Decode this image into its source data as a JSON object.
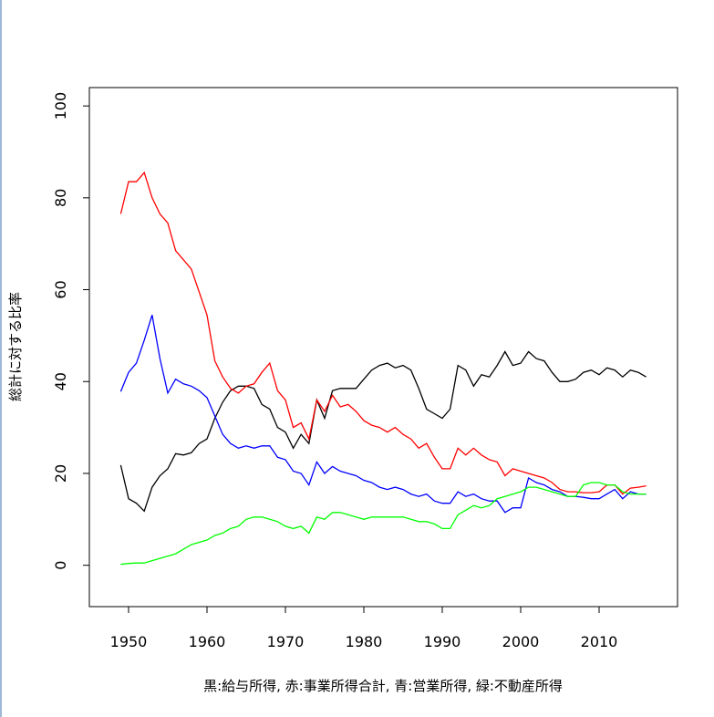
{
  "chart_data": {
    "type": "line",
    "title": "",
    "xlabel": "黒:給与所得, 赤:事業所得合計, 青:営業所得, 緑:不動産所得",
    "ylabel": "総計に対する比率",
    "xlim": [
      1945,
      2020
    ],
    "ylim": [
      -9,
      104
    ],
    "x_ticks": [
      1950,
      1960,
      1970,
      1980,
      1990,
      2000,
      2010
    ],
    "y_ticks": [
      0,
      20,
      40,
      60,
      80,
      100
    ],
    "grid": false,
    "legend": "none",
    "x": [
      1949,
      1950,
      1951,
      1952,
      1953,
      1954,
      1955,
      1956,
      1957,
      1958,
      1959,
      1960,
      1961,
      1962,
      1963,
      1964,
      1965,
      1966,
      1967,
      1968,
      1969,
      1970,
      1971,
      1972,
      1973,
      1974,
      1975,
      1976,
      1977,
      1978,
      1979,
      1980,
      1981,
      1982,
      1983,
      1984,
      1985,
      1986,
      1987,
      1988,
      1989,
      1990,
      1991,
      1992,
      1993,
      1994,
      1995,
      1996,
      1997,
      1998,
      1999,
      2000,
      2001,
      2002,
      2003,
      2004,
      2005,
      2006,
      2007,
      2008,
      2009,
      2010,
      2011,
      2012,
      2013,
      2014,
      2015,
      2016
    ],
    "series": [
      {
        "color": "#000000",
        "values": [
          21.8,
          14.5,
          13.5,
          11.8,
          17.0,
          19.5,
          21.0,
          24.3,
          24.0,
          24.5,
          26.5,
          27.5,
          32.0,
          35.5,
          38.0,
          39.0,
          39.0,
          38.5,
          35.0,
          34.0,
          30.0,
          29.0,
          25.5,
          28.5,
          26.5,
          36.0,
          32.0,
          38.0,
          38.5,
          38.5,
          38.5,
          40.5,
          42.5,
          43.5,
          44.0,
          43.0,
          43.5,
          42.5,
          38.5,
          34.0,
          33.0,
          32.0,
          34.0,
          43.5,
          42.5,
          39.0,
          41.5,
          41.0,
          43.5,
          46.5,
          43.5,
          44.0,
          46.5,
          45.0,
          44.5,
          42.0,
          40.0,
          40.0,
          40.5,
          42.0,
          42.5,
          41.5,
          43.0,
          42.5,
          41.0,
          42.5,
          42.0,
          41.0
        ]
      },
      {
        "color": "#ff0000",
        "values": [
          76.5,
          83.5,
          83.5,
          85.5,
          80.0,
          76.5,
          74.5,
          68.5,
          66.5,
          64.5,
          59.5,
          54.5,
          44.5,
          41.0,
          38.5,
          37.5,
          39.0,
          39.5,
          42.0,
          44.0,
          38.0,
          36.0,
          30.0,
          31.0,
          27.5,
          36.0,
          33.5,
          37.0,
          34.5,
          35.0,
          33.5,
          31.5,
          30.5,
          30.0,
          29.0,
          30.0,
          28.5,
          27.5,
          25.5,
          26.5,
          23.5,
          21.0,
          21.0,
          25.5,
          24.0,
          25.5,
          24.0,
          23.0,
          22.5,
          19.5,
          21.0,
          20.5,
          20.0,
          19.5,
          19.0,
          18.0,
          16.5,
          16.0,
          16.0,
          15.8,
          15.8,
          16.0,
          17.5,
          17.5,
          15.5,
          16.8,
          17.0,
          17.3
        ]
      },
      {
        "color": "#0000ff",
        "values": [
          37.8,
          42.0,
          44.0,
          49.0,
          54.5,
          45.0,
          37.5,
          40.5,
          39.5,
          39.0,
          38.0,
          36.5,
          32.5,
          28.5,
          26.5,
          25.5,
          26.0,
          25.5,
          26.0,
          26.0,
          23.5,
          23.0,
          20.5,
          20.0,
          17.5,
          22.5,
          20.0,
          21.5,
          20.5,
          20.0,
          19.5,
          18.5,
          18.0,
          17.0,
          16.5,
          17.0,
          16.5,
          15.5,
          15.0,
          15.5,
          14.0,
          13.5,
          13.5,
          16.0,
          15.0,
          15.5,
          14.5,
          14.0,
          14.0,
          11.5,
          12.5,
          12.5,
          19.0,
          18.0,
          17.5,
          16.5,
          16.0,
          15.0,
          15.0,
          14.8,
          14.5,
          14.5,
          15.5,
          16.5,
          14.5,
          16.0,
          15.5,
          15.5
        ]
      },
      {
        "color": "#00ff00",
        "values": [
          0.2,
          0.4,
          0.5,
          0.5,
          1.0,
          1.5,
          2.0,
          2.5,
          3.5,
          4.5,
          5.0,
          5.5,
          6.5,
          7.0,
          8.0,
          8.5,
          10.0,
          10.5,
          10.5,
          10.0,
          9.5,
          8.5,
          8.0,
          8.5,
          7.0,
          10.5,
          10.0,
          11.5,
          11.5,
          11.0,
          10.5,
          10.0,
          10.5,
          10.5,
          10.5,
          10.5,
          10.5,
          10.0,
          9.5,
          9.5,
          9.0,
          8.0,
          8.0,
          11.0,
          12.0,
          13.0,
          12.5,
          13.0,
          14.5,
          15.0,
          15.5,
          16.0,
          17.0,
          17.0,
          16.5,
          16.0,
          15.5,
          15.0,
          15.0,
          17.5,
          18.0,
          18.0,
          17.5,
          17.5,
          16.0,
          15.5,
          15.5,
          15.5
        ]
      }
    ]
  }
}
